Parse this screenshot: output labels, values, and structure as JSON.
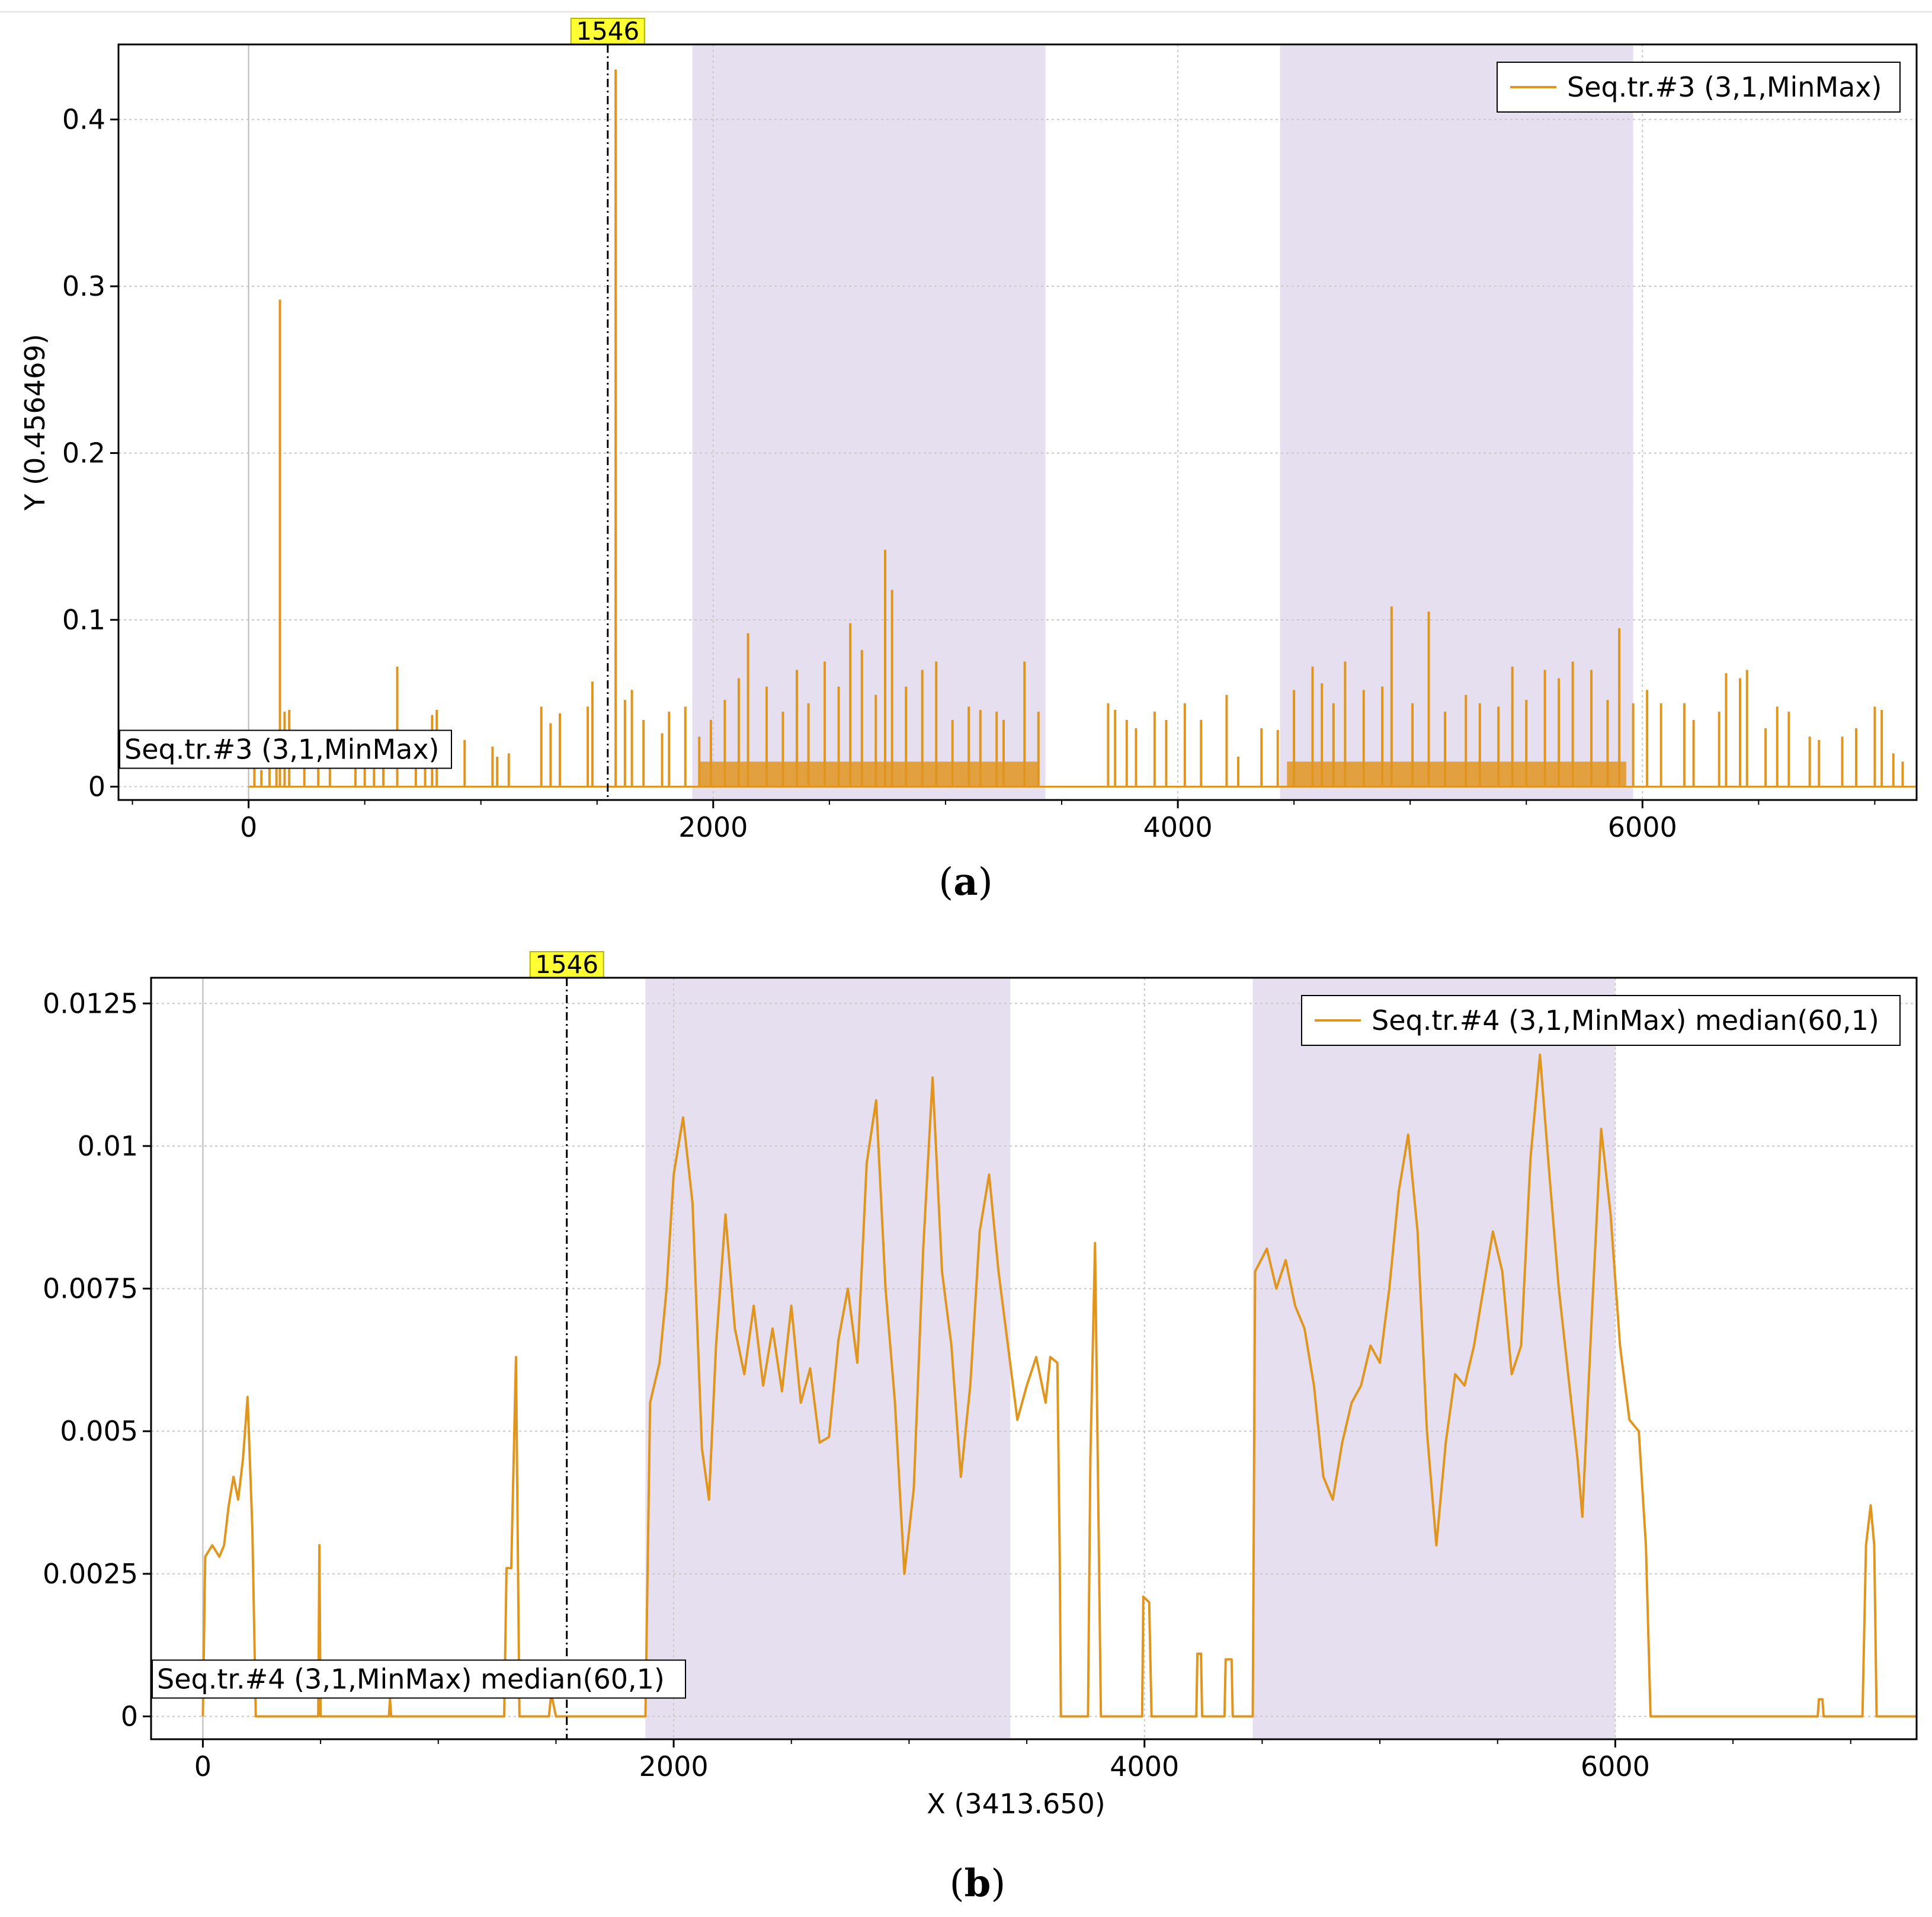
{
  "colors": {
    "series": "#e0961e",
    "band": "#e6dff0",
    "grid": "#c8c8c8",
    "marker_bg": "#ffff33",
    "frame": "#000000"
  },
  "chart_data": [
    {
      "id": "a",
      "type": "line",
      "caption": "a",
      "title": "",
      "xlabel": "",
      "ylabel": "Y (0.456469)",
      "xlim": [
        -560,
        7180
      ],
      "ylim": [
        -0.008,
        0.445
      ],
      "xticks": [
        0,
        2000,
        4000,
        6000
      ],
      "xtick_labels": [
        "0",
        "2000",
        "4000",
        "6000"
      ],
      "yticks": [
        0,
        0.1,
        0.2,
        0.3,
        0.4
      ],
      "ytick_labels": [
        "0",
        "0.1",
        "0.2",
        "0.3",
        "0.4"
      ],
      "grid": true,
      "legend": {
        "position": "top-right",
        "label": "Seq.tr.#3 (3,1,MinMax)"
      },
      "series_tag": "Seq.tr.#3 (3,1,MinMax)",
      "marker": {
        "x": 1546,
        "label": "1546"
      },
      "bands": [
        [
          1910,
          3430
        ],
        [
          4440,
          5960
        ]
      ],
      "base_segments": [
        [
          0,
          70
        ],
        [
          20,
          100
        ],
        [
          70,
          100
        ],
        [
          110,
          0
        ],
        [
          1940,
          15
        ],
        [
          3400,
          15
        ],
        [
          3440,
          0
        ],
        [
          4470,
          15
        ],
        [
          5930,
          15
        ],
        [
          5960,
          0
        ],
        [
          7180,
          0
        ]
      ],
      "spikes": [
        [
          25,
          0.012
        ],
        [
          55,
          0.01
        ],
        [
          90,
          0.015
        ],
        [
          120,
          0.011
        ],
        [
          135,
          0.292
        ],
        [
          155,
          0.045
        ],
        [
          175,
          0.046
        ],
        [
          240,
          0.02
        ],
        [
          300,
          0.018
        ],
        [
          350,
          0.02
        ],
        [
          460,
          0.025
        ],
        [
          500,
          0.03
        ],
        [
          540,
          0.015
        ],
        [
          580,
          0.028
        ],
        [
          640,
          0.072
        ],
        [
          720,
          0.018
        ],
        [
          760,
          0.03
        ],
        [
          790,
          0.043
        ],
        [
          810,
          0.046
        ],
        [
          930,
          0.028
        ],
        [
          1050,
          0.024
        ],
        [
          1070,
          0.018
        ],
        [
          1120,
          0.02
        ],
        [
          1260,
          0.048
        ],
        [
          1300,
          0.038
        ],
        [
          1340,
          0.044
        ],
        [
          1460,
          0.048
        ],
        [
          1480,
          0.063
        ],
        [
          1580,
          0.43
        ],
        [
          1620,
          0.052
        ],
        [
          1650,
          0.058
        ],
        [
          1700,
          0.04
        ],
        [
          1780,
          0.032
        ],
        [
          1810,
          0.045
        ],
        [
          1880,
          0.048
        ],
        [
          1940,
          0.03
        ],
        [
          1990,
          0.04
        ],
        [
          2050,
          0.052
        ],
        [
          2110,
          0.065
        ],
        [
          2150,
          0.092
        ],
        [
          2230,
          0.06
        ],
        [
          2300,
          0.045
        ],
        [
          2360,
          0.07
        ],
        [
          2410,
          0.05
        ],
        [
          2480,
          0.075
        ],
        [
          2540,
          0.06
        ],
        [
          2590,
          0.098
        ],
        [
          2640,
          0.082
        ],
        [
          2700,
          0.055
        ],
        [
          2740,
          0.142
        ],
        [
          2770,
          0.118
        ],
        [
          2830,
          0.06
        ],
        [
          2900,
          0.07
        ],
        [
          2960,
          0.075
        ],
        [
          3030,
          0.04
        ],
        [
          3100,
          0.048
        ],
        [
          3150,
          0.046
        ],
        [
          3220,
          0.045
        ],
        [
          3250,
          0.04
        ],
        [
          3340,
          0.075
        ],
        [
          3400,
          0.045
        ],
        [
          3700,
          0.05
        ],
        [
          3730,
          0.046
        ],
        [
          3780,
          0.04
        ],
        [
          3820,
          0.035
        ],
        [
          3900,
          0.045
        ],
        [
          3950,
          0.04
        ],
        [
          4030,
          0.05
        ],
        [
          4100,
          0.04
        ],
        [
          4210,
          0.055
        ],
        [
          4260,
          0.018
        ],
        [
          4360,
          0.035
        ],
        [
          4430,
          0.034
        ],
        [
          4500,
          0.058
        ],
        [
          4580,
          0.072
        ],
        [
          4620,
          0.062
        ],
        [
          4670,
          0.05
        ],
        [
          4720,
          0.075
        ],
        [
          4800,
          0.058
        ],
        [
          4880,
          0.06
        ],
        [
          4920,
          0.108
        ],
        [
          5010,
          0.05
        ],
        [
          5080,
          0.105
        ],
        [
          5150,
          0.045
        ],
        [
          5240,
          0.055
        ],
        [
          5300,
          0.05
        ],
        [
          5380,
          0.048
        ],
        [
          5440,
          0.072
        ],
        [
          5500,
          0.052
        ],
        [
          5580,
          0.07
        ],
        [
          5640,
          0.065
        ],
        [
          5700,
          0.075
        ],
        [
          5780,
          0.07
        ],
        [
          5850,
          0.052
        ],
        [
          5900,
          0.095
        ],
        [
          5960,
          0.05
        ],
        [
          6020,
          0.058
        ],
        [
          6080,
          0.05
        ],
        [
          6180,
          0.05
        ],
        [
          6220,
          0.04
        ],
        [
          6330,
          0.045
        ],
        [
          6360,
          0.068
        ],
        [
          6420,
          0.065
        ],
        [
          6450,
          0.07
        ],
        [
          6530,
          0.035
        ],
        [
          6580,
          0.048
        ],
        [
          6630,
          0.045
        ],
        [
          6720,
          0.03
        ],
        [
          6760,
          0.028
        ],
        [
          6860,
          0.03
        ],
        [
          6920,
          0.035
        ],
        [
          7000,
          0.048
        ],
        [
          7030,
          0.046
        ],
        [
          7080,
          0.02
        ],
        [
          7120,
          0.015
        ]
      ]
    },
    {
      "id": "b",
      "type": "line",
      "caption": "b",
      "title": "",
      "xlabel": "X (3413.650)",
      "ylabel": "",
      "xlim": [
        -220,
        7280
      ],
      "ylim": [
        -0.0004,
        0.01295
      ],
      "xticks": [
        0,
        2000,
        4000,
        6000
      ],
      "xtick_labels": [
        "0",
        "2000",
        "4000",
        "6000"
      ],
      "yticks": [
        0,
        0.0025,
        0.005,
        0.0075,
        0.01,
        0.0125
      ],
      "ytick_labels": [
        "0",
        "0.0025",
        "0.005",
        "0.0075",
        "0.01",
        "0.0125"
      ],
      "grid": true,
      "legend": {
        "position": "top-right",
        "label": "Seq.tr.#4 (3,1,MinMax) median(60,1)"
      },
      "series_tag": "Seq.tr.#4 (3,1,MinMax) median(60,1)",
      "marker": {
        "x": 1546,
        "label": "1546"
      },
      "bands": [
        [
          1880,
          3430
        ],
        [
          4460,
          6000
        ]
      ],
      "points": [
        [
          0,
          0
        ],
        [
          10,
          0.0028
        ],
        [
          40,
          0.003
        ],
        [
          70,
          0.0028
        ],
        [
          90,
          0.003
        ],
        [
          110,
          0.0037
        ],
        [
          130,
          0.0042
        ],
        [
          150,
          0.0038
        ],
        [
          170,
          0.0045
        ],
        [
          190,
          0.0056
        ],
        [
          210,
          0.0033
        ],
        [
          225,
          0
        ],
        [
          490,
          0
        ],
        [
          495,
          0.003
        ],
        [
          500,
          0
        ],
        [
          790,
          0
        ],
        [
          795,
          0.0003
        ],
        [
          800,
          0
        ],
        [
          1280,
          0
        ],
        [
          1290,
          0.0026
        ],
        [
          1310,
          0.0026
        ],
        [
          1330,
          0.0063
        ],
        [
          1345,
          0
        ],
        [
          1470,
          0
        ],
        [
          1480,
          0.0004
        ],
        [
          1500,
          0
        ],
        [
          1880,
          0
        ],
        [
          1900,
          0.0055
        ],
        [
          1940,
          0.0062
        ],
        [
          1970,
          0.0075
        ],
        [
          2000,
          0.0095
        ],
        [
          2040,
          0.0105
        ],
        [
          2080,
          0.009
        ],
        [
          2120,
          0.0047
        ],
        [
          2150,
          0.0038
        ],
        [
          2180,
          0.0065
        ],
        [
          2220,
          0.0088
        ],
        [
          2260,
          0.0068
        ],
        [
          2300,
          0.006
        ],
        [
          2340,
          0.0072
        ],
        [
          2380,
          0.0058
        ],
        [
          2420,
          0.0068
        ],
        [
          2460,
          0.0057
        ],
        [
          2500,
          0.0072
        ],
        [
          2540,
          0.0055
        ],
        [
          2580,
          0.0061
        ],
        [
          2620,
          0.0048
        ],
        [
          2660,
          0.0049
        ],
        [
          2700,
          0.0066
        ],
        [
          2740,
          0.0075
        ],
        [
          2780,
          0.0062
        ],
        [
          2820,
          0.0097
        ],
        [
          2860,
          0.0108
        ],
        [
          2900,
          0.0075
        ],
        [
          2940,
          0.0055
        ],
        [
          2980,
          0.0025
        ],
        [
          3020,
          0.004
        ],
        [
          3060,
          0.0082
        ],
        [
          3100,
          0.0112
        ],
        [
          3140,
          0.0078
        ],
        [
          3180,
          0.0065
        ],
        [
          3220,
          0.0042
        ],
        [
          3260,
          0.0058
        ],
        [
          3300,
          0.0085
        ],
        [
          3340,
          0.0095
        ],
        [
          3380,
          0.0078
        ],
        [
          3420,
          0.0065
        ],
        [
          3460,
          0.0052
        ],
        [
          3500,
          0.0058
        ],
        [
          3540,
          0.0063
        ],
        [
          3580,
          0.0055
        ],
        [
          3600,
          0.0063
        ],
        [
          3630,
          0.0062
        ],
        [
          3640,
          0.0028
        ],
        [
          3645,
          0
        ],
        [
          3760,
          0
        ],
        [
          3770,
          0.0045
        ],
        [
          3790,
          0.0083
        ],
        [
          3800,
          0.005
        ],
        [
          3815,
          0
        ],
        [
          3990,
          0
        ],
        [
          3995,
          0.0021
        ],
        [
          4020,
          0.002
        ],
        [
          4030,
          0
        ],
        [
          4220,
          0
        ],
        [
          4225,
          0.0011
        ],
        [
          4240,
          0.0011
        ],
        [
          4245,
          0
        ],
        [
          4340,
          0
        ],
        [
          4345,
          0.001
        ],
        [
          4370,
          0.001
        ],
        [
          4375,
          0
        ],
        [
          4460,
          0
        ],
        [
          4470,
          0.0078
        ],
        [
          4520,
          0.0082
        ],
        [
          4560,
          0.0075
        ],
        [
          4600,
          0.008
        ],
        [
          4640,
          0.0072
        ],
        [
          4680,
          0.0068
        ],
        [
          4720,
          0.0058
        ],
        [
          4760,
          0.0042
        ],
        [
          4800,
          0.0038
        ],
        [
          4840,
          0.0048
        ],
        [
          4880,
          0.0055
        ],
        [
          4920,
          0.0058
        ],
        [
          4960,
          0.0065
        ],
        [
          5000,
          0.0062
        ],
        [
          5040,
          0.0075
        ],
        [
          5080,
          0.0092
        ],
        [
          5120,
          0.0102
        ],
        [
          5160,
          0.0085
        ],
        [
          5200,
          0.005
        ],
        [
          5240,
          0.003
        ],
        [
          5280,
          0.0048
        ],
        [
          5320,
          0.006
        ],
        [
          5360,
          0.0058
        ],
        [
          5400,
          0.0065
        ],
        [
          5440,
          0.0075
        ],
        [
          5480,
          0.0085
        ],
        [
          5520,
          0.0078
        ],
        [
          5560,
          0.006
        ],
        [
          5600,
          0.0065
        ],
        [
          5640,
          0.0098
        ],
        [
          5680,
          0.0116
        ],
        [
          5720,
          0.0095
        ],
        [
          5760,
          0.0075
        ],
        [
          5800,
          0.006
        ],
        [
          5840,
          0.0045
        ],
        [
          5860,
          0.0035
        ],
        [
          5900,
          0.007
        ],
        [
          5940,
          0.0103
        ],
        [
          5980,
          0.0088
        ],
        [
          6020,
          0.0065
        ],
        [
          6060,
          0.0052
        ],
        [
          6100,
          0.005
        ],
        [
          6130,
          0.003
        ],
        [
          6150,
          0
        ],
        [
          6860,
          0
        ],
        [
          6865,
          0.0003
        ],
        [
          6880,
          0.0003
        ],
        [
          6885,
          0
        ],
        [
          7050,
          0
        ],
        [
          7065,
          0.003
        ],
        [
          7085,
          0.0037
        ],
        [
          7100,
          0.003
        ],
        [
          7110,
          0
        ],
        [
          7280,
          0
        ]
      ]
    }
  ]
}
